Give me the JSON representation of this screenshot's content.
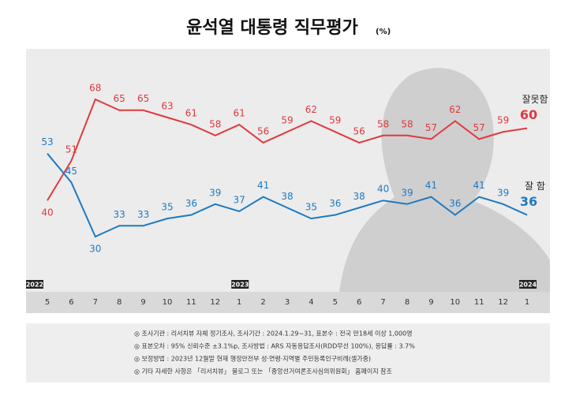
{
  "chart_data": {
    "type": "line",
    "title": "윤석열 대통령 직무평가",
    "unit": "(%)",
    "categories": [
      "5",
      "6",
      "7",
      "8",
      "9",
      "10",
      "11",
      "12",
      "1",
      "2",
      "3",
      "4",
      "5",
      "6",
      "7",
      "8",
      "9",
      "10",
      "11",
      "12",
      "1"
    ],
    "years": [
      "2022",
      "2023",
      "2024"
    ],
    "series": [
      {
        "name": "잘못함",
        "color": "#e0393e",
        "values": [
          40,
          51,
          68,
          65,
          65,
          63,
          61,
          58,
          61,
          56,
          59,
          62,
          59,
          56,
          58,
          58,
          57,
          62,
          57,
          59,
          60
        ]
      },
      {
        "name": "잘 함",
        "color": "#1f7ac0",
        "values": [
          53,
          45,
          30,
          33,
          33,
          35,
          36,
          39,
          37,
          41,
          38,
          35,
          36,
          38,
          40,
          39,
          41,
          36,
          41,
          39,
          36
        ]
      }
    ],
    "notes": [
      "◎ 조사기관 : 리서치뷰 자체 정기조사, 조사기간 : 2024.1.29~31, 표본수 : 전국 만18세 이상 1,000명",
      "◎ 표본오차 : 95% 신뢰수준 ±3.1%p, 조사방법 : ARS 자동응답조사(RDD무선 100%), 응답률 : 3.7%",
      "◎ 보정방법 : 2023년 12월말 현재 행정안전부 성·연령·지역별 주민등록인구비례(셀가중)",
      "◎ 기타 자세한 사항은 「리서치뷰」 블로그 또는 「중앙선거여론조사심의위원회」 홈페이지 참조"
    ]
  }
}
